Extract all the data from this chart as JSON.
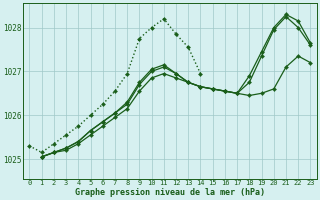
{
  "xlabel": "Graphe pression niveau de la mer (hPa)",
  "xlim": [
    -0.5,
    23.5
  ],
  "ylim": [
    1024.55,
    1028.55
  ],
  "yticks": [
    1025,
    1026,
    1027,
    1028
  ],
  "xticks": [
    0,
    1,
    2,
    3,
    4,
    5,
    6,
    7,
    8,
    9,
    10,
    11,
    12,
    13,
    14,
    15,
    16,
    17,
    18,
    19,
    20,
    21,
    22,
    23
  ],
  "bg_color": "#d6f0f0",
  "grid_color": "#a0c8c8",
  "line_color": "#1a5e1a",
  "lines": [
    {
      "x": [
        0,
        1,
        2,
        3,
        4,
        5,
        6,
        7,
        8,
        9,
        10,
        11,
        12,
        13,
        14
      ],
      "y": [
        1025.3,
        1025.15,
        1025.35,
        1025.55,
        1025.75,
        1026.0,
        1026.25,
        1026.55,
        1026.95,
        1027.75,
        1028.0,
        1028.2,
        1027.85,
        1027.55,
        1026.95
      ],
      "style": "dotted",
      "lw": 1.0
    },
    {
      "x": [
        1,
        2,
        3,
        4,
        5,
        6,
        7,
        8,
        9,
        10,
        11,
        12,
        13,
        14,
        15,
        16,
        17,
        18,
        19,
        20,
        21,
        22,
        23
      ],
      "y": [
        1025.05,
        1025.15,
        1025.2,
        1025.35,
        1025.55,
        1025.75,
        1025.95,
        1026.15,
        1026.55,
        1026.85,
        1026.95,
        1026.85,
        1026.75,
        1026.65,
        1026.6,
        1026.55,
        1026.5,
        1026.45,
        1026.5,
        1026.6,
        1027.1,
        1027.35,
        1027.2
      ],
      "style": "solid",
      "lw": 0.9
    },
    {
      "x": [
        1,
        2,
        3,
        4,
        5,
        6,
        7,
        8,
        9,
        10,
        11,
        12,
        13,
        14,
        15,
        16,
        17,
        18,
        19,
        20,
        21,
        22,
        23
      ],
      "y": [
        1025.05,
        1025.15,
        1025.25,
        1025.4,
        1025.65,
        1025.85,
        1026.05,
        1026.25,
        1026.7,
        1027.0,
        1027.1,
        1026.95,
        1026.75,
        1026.65,
        1026.6,
        1026.55,
        1026.5,
        1026.75,
        1027.35,
        1027.95,
        1028.25,
        1028.0,
        1027.6
      ],
      "style": "solid",
      "lw": 0.9
    },
    {
      "x": [
        1,
        2,
        3,
        4,
        5,
        6,
        7,
        8,
        9,
        10,
        11,
        12,
        13,
        14,
        15,
        16,
        17,
        18,
        19,
        20,
        21,
        22,
        23
      ],
      "y": [
        1025.05,
        1025.15,
        1025.25,
        1025.4,
        1025.65,
        1025.85,
        1026.05,
        1026.3,
        1026.75,
        1027.05,
        1027.15,
        1026.95,
        1026.75,
        1026.65,
        1026.6,
        1026.55,
        1026.5,
        1026.9,
        1027.45,
        1028.0,
        1028.3,
        1028.15,
        1027.65
      ],
      "style": "solid",
      "lw": 0.9
    }
  ]
}
